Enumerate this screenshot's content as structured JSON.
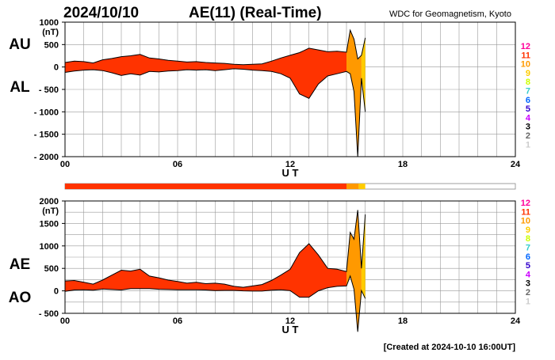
{
  "header": {
    "date": "2024/10/10",
    "title": "AE(11) (Real-Time)",
    "source": "WDC for Geomagnetism, Kyoto"
  },
  "footer": {
    "created": "[Created at 2024-10-10 16:00UT]"
  },
  "colors": {
    "fill_main": "#ff3300",
    "fill_orange": "#ff9900",
    "fill_yellow": "#ffcc00",
    "fill_cyan": "#33cccc",
    "line": "#000000",
    "grid": "#999999",
    "bar_border": "#888888"
  },
  "station_count_legend": [
    {
      "label": "12",
      "color": "#ff0099"
    },
    {
      "label": "11",
      "color": "#ff3300"
    },
    {
      "label": "10",
      "color": "#ff9900"
    },
    {
      "label": "9",
      "color": "#ffcc00"
    },
    {
      "label": "8",
      "color": "#ccff00"
    },
    {
      "label": "7",
      "color": "#33cccc"
    },
    {
      "label": "6",
      "color": "#0066ff"
    },
    {
      "label": "5",
      "color": "#3300cc"
    },
    {
      "label": "4",
      "color": "#cc00ff"
    },
    {
      "label": "3",
      "color": "#000000"
    },
    {
      "label": "2",
      "color": "#666666"
    },
    {
      "label": "1",
      "color": "#cccccc"
    }
  ],
  "station_bar": {
    "segments": [
      {
        "start": 0,
        "end": 15.0,
        "stations": "11",
        "color": "#ff3300"
      },
      {
        "start": 15.0,
        "end": 15.65,
        "stations": "10",
        "color": "#ff9900"
      },
      {
        "start": 15.65,
        "end": 16.0,
        "stations": "9",
        "color": "#ffcc00"
      }
    ]
  },
  "chart_data": [
    {
      "type": "area",
      "name": "AU/AL panel",
      "xlabel": "U T",
      "unit_label": "(nT)",
      "xlim": [
        0,
        24
      ],
      "xticks": [
        "00",
        "06",
        "12",
        "18",
        "24"
      ],
      "ylim": [
        -2000,
        1000
      ],
      "yticks": [
        "1000",
        "500",
        "0",
        "- 500",
        "- 1000",
        "- 1500",
        "- 2000"
      ],
      "series_labels": [
        "AU",
        "AL"
      ],
      "x": [
        0,
        0.5,
        1,
        1.5,
        2,
        2.5,
        3,
        3.5,
        4,
        4.5,
        5,
        5.5,
        6,
        6.5,
        7,
        7.5,
        8,
        8.5,
        9,
        9.5,
        10,
        10.5,
        11,
        11.5,
        12,
        12.5,
        13,
        13.5,
        14,
        14.5,
        15,
        15.2,
        15.4,
        15.6,
        15.8,
        16
      ],
      "series": [
        {
          "name": "AU",
          "values": [
            100,
            130,
            120,
            90,
            160,
            190,
            230,
            250,
            280,
            200,
            180,
            150,
            130,
            110,
            120,
            100,
            90,
            80,
            60,
            50,
            60,
            70,
            130,
            200,
            260,
            320,
            420,
            380,
            340,
            350,
            330,
            820,
            620,
            180,
            260,
            650
          ]
        },
        {
          "name": "AL",
          "values": [
            -120,
            -90,
            -70,
            -60,
            -80,
            -130,
            -190,
            -150,
            -180,
            -100,
            -110,
            -90,
            -80,
            -60,
            -70,
            -60,
            -80,
            -60,
            -40,
            -50,
            -70,
            -80,
            -100,
            -150,
            -250,
            -600,
            -700,
            -380,
            -200,
            -150,
            -100,
            -150,
            -550,
            -2000,
            -250,
            -1000
          ]
        }
      ],
      "legend": "none"
    },
    {
      "type": "area",
      "name": "AE/AO panel",
      "xlabel": "U T",
      "unit_label": "(nT)",
      "xlim": [
        0,
        24
      ],
      "xticks": [
        "00",
        "06",
        "12",
        "18",
        "24"
      ],
      "ylim": [
        -500,
        2000
      ],
      "yticks": [
        "2000",
        "1500",
        "1000",
        "500",
        "0",
        "- 500"
      ],
      "series_labels": [
        "AE",
        "AO"
      ],
      "x": [
        0,
        0.5,
        1,
        1.5,
        2,
        2.5,
        3,
        3.5,
        4,
        4.5,
        5,
        5.5,
        6,
        6.5,
        7,
        7.5,
        8,
        8.5,
        9,
        9.5,
        10,
        10.5,
        11,
        11.5,
        12,
        12.5,
        13,
        13.5,
        14,
        14.5,
        15,
        15.2,
        15.4,
        15.6,
        15.8,
        16
      ],
      "series": [
        {
          "name": "AE",
          "values": [
            220,
            230,
            190,
            150,
            240,
            350,
            460,
            440,
            480,
            330,
            290,
            240,
            210,
            170,
            190,
            160,
            170,
            150,
            100,
            80,
            110,
            140,
            230,
            350,
            480,
            850,
            1050,
            800,
            500,
            480,
            430,
            1300,
            1150,
            1800,
            500,
            1700
          ]
        },
        {
          "name": "AO",
          "values": [
            -10,
            20,
            25,
            15,
            40,
            30,
            20,
            50,
            50,
            50,
            35,
            30,
            25,
            25,
            25,
            20,
            5,
            10,
            10,
            0,
            -5,
            -5,
            15,
            25,
            5,
            -140,
            -140,
            0,
            70,
            100,
            110,
            330,
            35,
            -910,
            5,
            -170
          ]
        }
      ],
      "legend": "none"
    }
  ]
}
